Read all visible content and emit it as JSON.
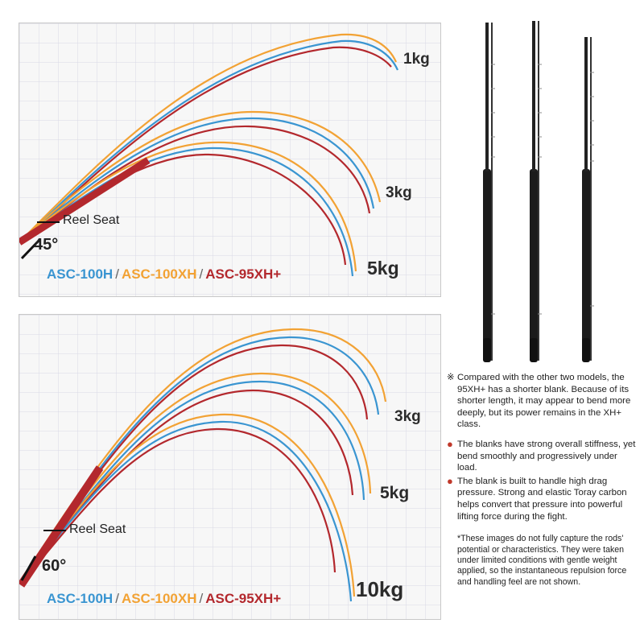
{
  "colors": {
    "h100": "#3a95d1",
    "xh100": "#f2a234",
    "xh95": "#b3282d",
    "grid": "#d9d9e6"
  },
  "top_panel": {
    "weights": [
      "1kg",
      "3kg",
      "5kg"
    ],
    "reel_seat": "Reel Seat",
    "angle": "45°",
    "legend": [
      "ASC-100H",
      "ASC-100XH",
      "ASC-95XH+"
    ],
    "separator": "/"
  },
  "bottom_panel": {
    "weights": [
      "3kg",
      "5kg",
      "10kg"
    ],
    "reel_seat": "Reel Seat",
    "angle": "60°",
    "legend": [
      "ASC-100H",
      "ASC-100XH",
      "ASC-95XH+"
    ],
    "separator": "/"
  },
  "notes": {
    "mark": "※",
    "compare": "Compared with the other two models, the 95XH+ has a shorter blank. Because of its shorter length, it may appear to bend more deeply, but its power remains in the XH+ class.",
    "bullets": [
      "The blanks have strong overall stiffness, yet bend smoothly and progressively under load.",
      "The blank is built to handle high drag pressure. Strong and elastic Toray carbon helps convert that pressure into powerful lifting force during the fight."
    ],
    "disclaimer": "*These images do not fully capture the rods' potential or characteristics. They were taken under limited conditions with gentle weight applied, so the instantaneous repulsion force and handling feel are not shown."
  }
}
